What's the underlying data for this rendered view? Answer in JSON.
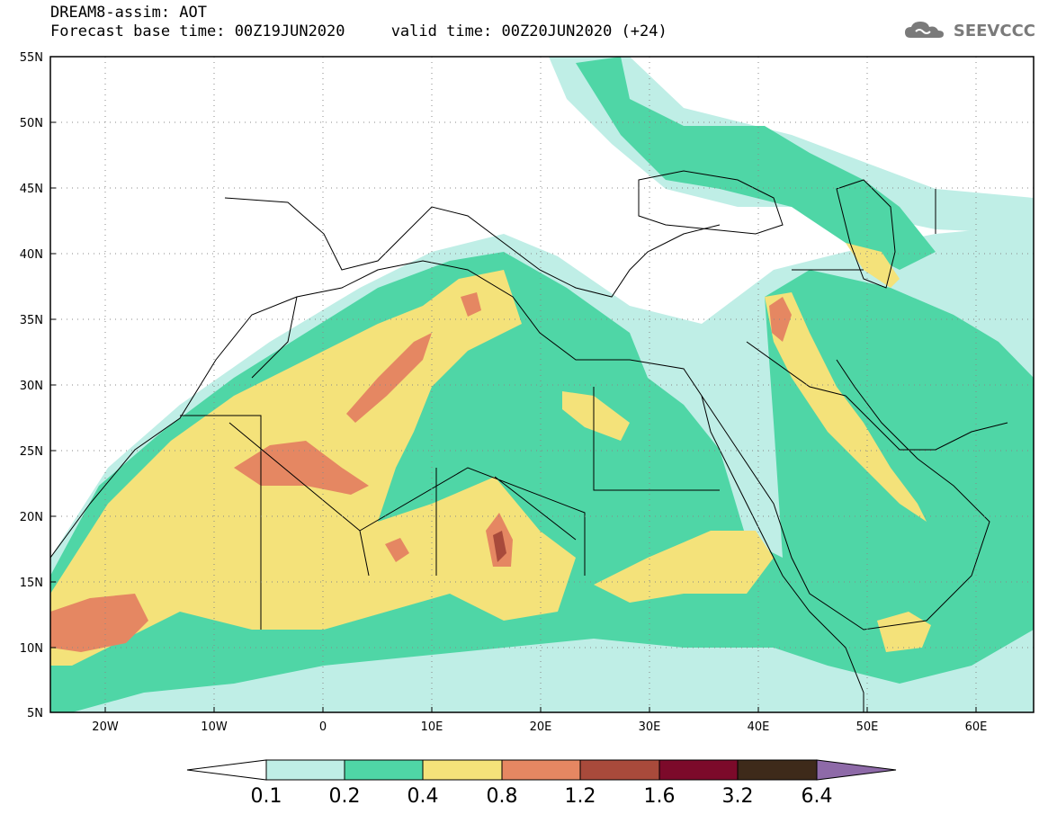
{
  "header": {
    "title_line1": "DREAM8-assim: AOT",
    "title_line2": "Forecast base time: 00Z19JUN2020     valid time: 00Z20JUN2020 (+24)"
  },
  "logo": {
    "text": "SEEVCCC",
    "icon": "cloud-icon",
    "color": "#7a7a7a"
  },
  "map": {
    "projection": "lat-lon",
    "lon_range": [
      -25,
      65
    ],
    "lat_range": [
      5,
      55
    ],
    "lon_ticks": [
      "20W",
      "10W",
      "0",
      "10E",
      "20E",
      "30E",
      "40E",
      "50E",
      "60E"
    ],
    "lat_ticks": [
      "55N",
      "50N",
      "45N",
      "40N",
      "35N",
      "30N",
      "25N",
      "20N",
      "15N",
      "10N",
      "5N"
    ],
    "grid": true
  },
  "colorbar": {
    "labels": [
      "0.1",
      "0.2",
      "0.4",
      "0.8",
      "1.2",
      "1.6",
      "3.2",
      "6.4"
    ],
    "colors": [
      "#ffffff",
      "#bfeee6",
      "#4fd6a6",
      "#f4e27a",
      "#e58762",
      "#a84a3b",
      "#7c0a2a",
      "#3e2a1a",
      "#8e6aa8"
    ]
  }
}
